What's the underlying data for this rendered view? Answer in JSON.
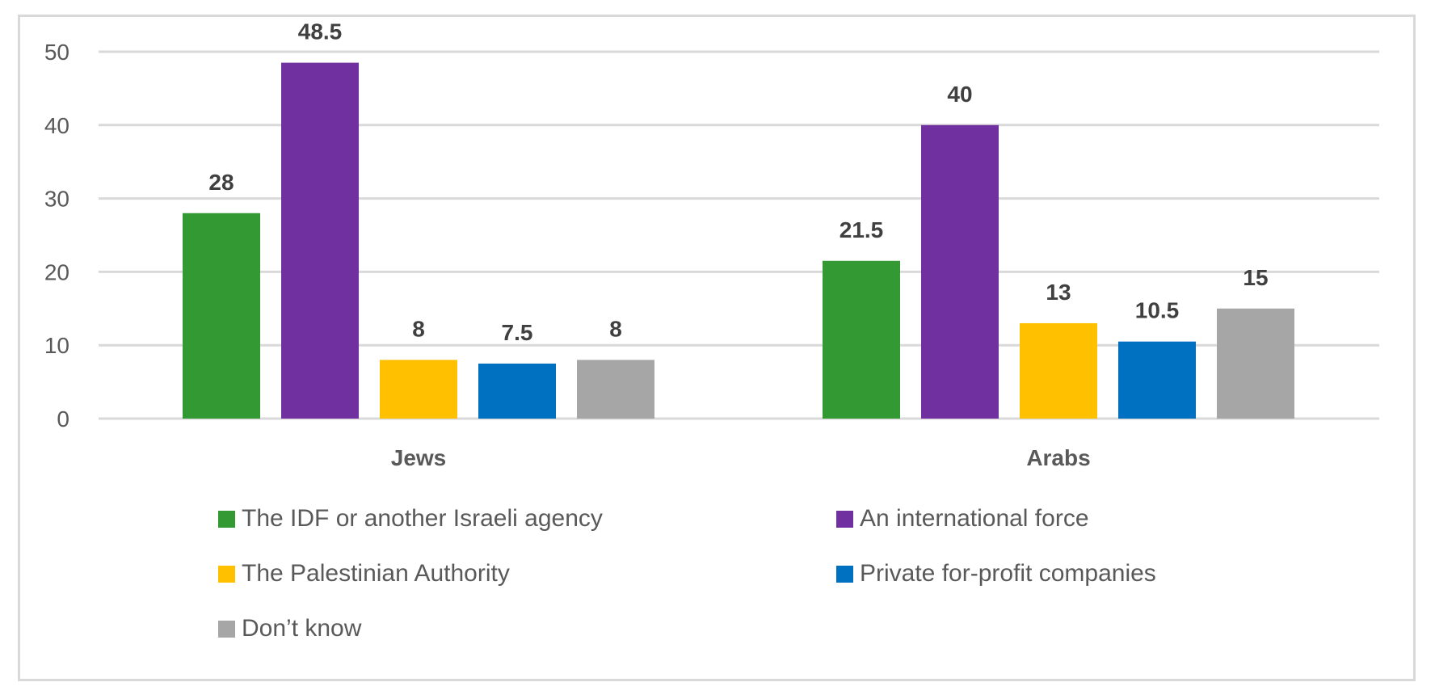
{
  "chart_data": {
    "type": "bar",
    "title": "",
    "xlabel": "",
    "ylabel": "",
    "categories": [
      "Jews",
      "Arabs"
    ],
    "series": [
      {
        "name": "The IDF or another Israeli agency",
        "color": "#339933",
        "values": [
          28,
          21.5
        ]
      },
      {
        "name": "An international force",
        "color": "#7030a0",
        "values": [
          48.5,
          40
        ]
      },
      {
        "name": "The Palestinian Authority",
        "color": "#ffc000",
        "values": [
          8,
          13
        ]
      },
      {
        "name": "Private for-profit companies",
        "color": "#0070c0",
        "values": [
          7.5,
          10.5
        ]
      },
      {
        "name": "Don’t know",
        "color": "#a6a6a6",
        "values": [
          8,
          15
        ]
      }
    ],
    "data_labels": [
      [
        "28",
        "48.5",
        "8",
        "7.5",
        "8"
      ],
      [
        "21.5",
        "40",
        "13",
        "10.5",
        "15"
      ]
    ],
    "yticks": [
      0,
      10,
      20,
      30,
      40,
      50
    ],
    "ytick_labels": [
      "0",
      "10",
      "20",
      "30",
      "40",
      "50"
    ],
    "ylim": [
      0,
      50
    ],
    "grid": true,
    "legend_position": "bottom"
  }
}
